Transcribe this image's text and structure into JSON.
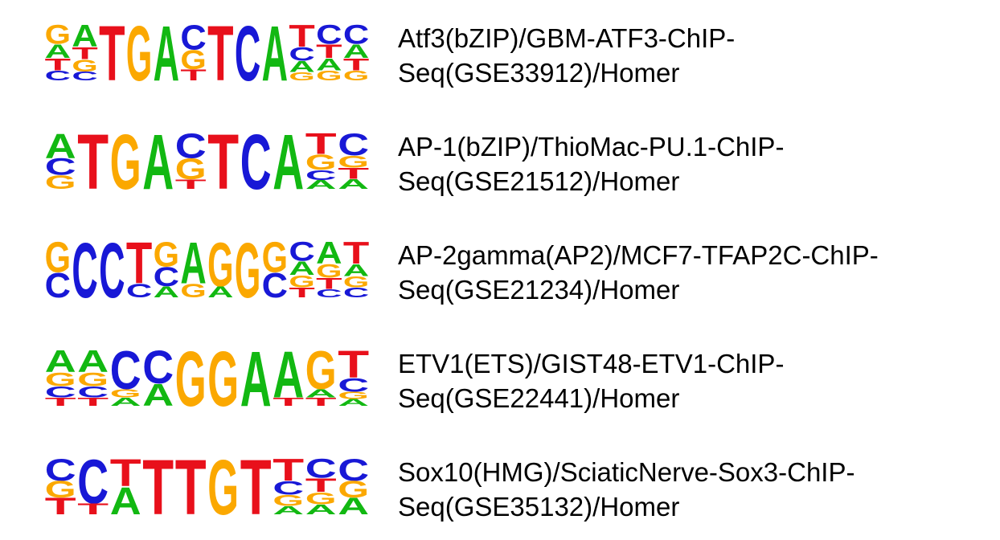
{
  "colors": {
    "A": "#12b812",
    "C": "#1818d6",
    "G": "#fba800",
    "T": "#e8101b"
  },
  "motifs": [
    {
      "label_line1": "Atf3(bZIP)/GBM-ATF3-ChIP-",
      "label_line2": "Seq(GSE33912)/Homer",
      "positions": [
        [
          [
            "G",
            0.35
          ],
          [
            "A",
            0.25
          ],
          [
            "T",
            0.22
          ],
          [
            "C",
            0.18
          ]
        ],
        [
          [
            "A",
            0.4
          ],
          [
            "T",
            0.22
          ],
          [
            "G",
            0.22
          ],
          [
            "C",
            0.16
          ]
        ],
        [
          [
            "T",
            1.0
          ]
        ],
        [
          [
            "G",
            1.0
          ]
        ],
        [
          [
            "A",
            1.0
          ]
        ],
        [
          [
            "C",
            0.45
          ],
          [
            "G",
            0.35
          ],
          [
            "T",
            0.2
          ]
        ],
        [
          [
            "T",
            1.0
          ]
        ],
        [
          [
            "C",
            1.0
          ]
        ],
        [
          [
            "A",
            1.0
          ]
        ],
        [
          [
            "T",
            0.4
          ],
          [
            "C",
            0.25
          ],
          [
            "A",
            0.2
          ],
          [
            "G",
            0.15
          ]
        ],
        [
          [
            "C",
            0.35
          ],
          [
            "T",
            0.25
          ],
          [
            "A",
            0.22
          ],
          [
            "G",
            0.18
          ]
        ],
        [
          [
            "C",
            0.35
          ],
          [
            "A",
            0.25
          ],
          [
            "T",
            0.22
          ],
          [
            "G",
            0.18
          ]
        ]
      ]
    },
    {
      "label_line1": "AP-1(bZIP)/ThioMac-PU.1-ChIP-",
      "label_line2": "Seq(GSE21512)/Homer",
      "positions": [
        [
          [
            "A",
            0.45
          ],
          [
            "C",
            0.3
          ],
          [
            "G",
            0.25
          ]
        ],
        [
          [
            "T",
            1.0
          ]
        ],
        [
          [
            "G",
            1.0
          ]
        ],
        [
          [
            "A",
            1.0
          ]
        ],
        [
          [
            "C",
            0.45
          ],
          [
            "G",
            0.38
          ],
          [
            "T",
            0.17
          ]
        ],
        [
          [
            "T",
            1.0
          ]
        ],
        [
          [
            "C",
            1.0
          ]
        ],
        [
          [
            "A",
            1.0
          ]
        ],
        [
          [
            "T",
            0.38
          ],
          [
            "G",
            0.28
          ],
          [
            "C",
            0.18
          ],
          [
            "A",
            0.16
          ]
        ],
        [
          [
            "C",
            0.4
          ],
          [
            "G",
            0.22
          ],
          [
            "T",
            0.2
          ],
          [
            "A",
            0.18
          ]
        ]
      ]
    },
    {
      "label_line1": "AP-2gamma(AP2)/MCF7-TFAP2C-ChIP-",
      "label_line2": "Seq(GSE21234)/Homer",
      "positions": [
        [
          [
            "G",
            0.55
          ],
          [
            "C",
            0.45
          ]
        ],
        [
          [
            "C",
            1.0
          ]
        ],
        [
          [
            "C",
            1.0
          ]
        ],
        [
          [
            "T",
            0.75
          ],
          [
            "C",
            0.25
          ]
        ],
        [
          [
            "G",
            0.45
          ],
          [
            "C",
            0.35
          ],
          [
            "A",
            0.2
          ]
        ],
        [
          [
            "A",
            0.75
          ],
          [
            "G",
            0.25
          ]
        ],
        [
          [
            "G",
            0.8
          ],
          [
            "A",
            0.2
          ]
        ],
        [
          [
            "G",
            1.0
          ]
        ],
        [
          [
            "G",
            0.55
          ],
          [
            "C",
            0.45
          ]
        ],
        [
          [
            "C",
            0.35
          ],
          [
            "A",
            0.25
          ],
          [
            "G",
            0.22
          ],
          [
            "T",
            0.18
          ]
        ],
        [
          [
            "A",
            0.4
          ],
          [
            "G",
            0.25
          ],
          [
            "T",
            0.2
          ],
          [
            "C",
            0.15
          ]
        ],
        [
          [
            "T",
            0.4
          ],
          [
            "A",
            0.22
          ],
          [
            "G",
            0.2
          ],
          [
            "C",
            0.18
          ]
        ]
      ]
    },
    {
      "label_line1": "ETV1(ETS)/GIST48-ETV1-ChIP-",
      "label_line2": "Seq(GSE22441)/Homer",
      "positions": [
        [
          [
            "A",
            0.4
          ],
          [
            "G",
            0.25
          ],
          [
            "C",
            0.2
          ],
          [
            "T",
            0.15
          ]
        ],
        [
          [
            "A",
            0.4
          ],
          [
            "G",
            0.25
          ],
          [
            "C",
            0.2
          ],
          [
            "T",
            0.15
          ]
        ],
        [
          [
            "C",
            0.7
          ],
          [
            "G",
            0.15
          ],
          [
            "A",
            0.15
          ]
        ],
        [
          [
            "C",
            0.6
          ],
          [
            "A",
            0.4
          ]
        ],
        [
          [
            "G",
            1.0
          ]
        ],
        [
          [
            "G",
            1.0
          ]
        ],
        [
          [
            "A",
            1.0
          ]
        ],
        [
          [
            "A",
            0.85
          ],
          [
            "T",
            0.15
          ]
        ],
        [
          [
            "G",
            0.7
          ],
          [
            "A",
            0.15
          ],
          [
            "T",
            0.15
          ]
        ],
        [
          [
            "T",
            0.5
          ],
          [
            "C",
            0.25
          ],
          [
            "G",
            0.13
          ],
          [
            "A",
            0.12
          ]
        ]
      ]
    },
    {
      "label_line1": "Sox10(HMG)/SciaticNerve-Sox3-ChIP-",
      "label_line2": "Seq(GSE35132)/Homer",
      "positions": [
        [
          [
            "C",
            0.4
          ],
          [
            "G",
            0.3
          ],
          [
            "T",
            0.3
          ]
        ],
        [
          [
            "C",
            0.8
          ],
          [
            "T",
            0.2
          ]
        ],
        [
          [
            "T",
            0.5
          ],
          [
            "A",
            0.5
          ]
        ],
        [
          [
            "T",
            1.0
          ]
        ],
        [
          [
            "T",
            1.0
          ]
        ],
        [
          [
            "G",
            1.0
          ]
        ],
        [
          [
            "T",
            1.0
          ]
        ],
        [
          [
            "T",
            0.4
          ],
          [
            "C",
            0.25
          ],
          [
            "G",
            0.2
          ],
          [
            "A",
            0.15
          ]
        ],
        [
          [
            "C",
            0.35
          ],
          [
            "T",
            0.25
          ],
          [
            "G",
            0.22
          ],
          [
            "A",
            0.18
          ]
        ],
        [
          [
            "C",
            0.4
          ],
          [
            "G",
            0.3
          ],
          [
            "A",
            0.3
          ]
        ]
      ]
    }
  ]
}
